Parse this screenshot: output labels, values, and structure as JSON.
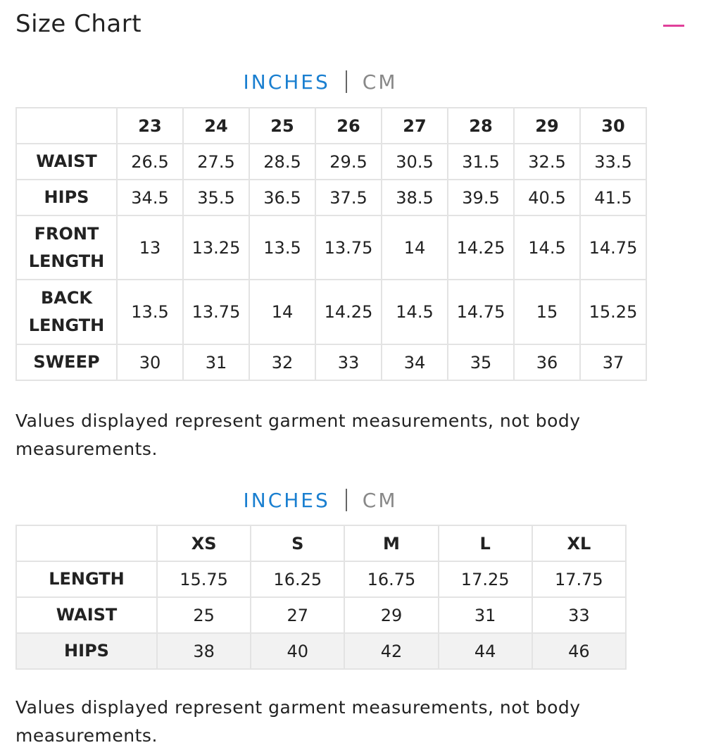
{
  "header": {
    "title": "Size Chart"
  },
  "tables": [
    {
      "units": [
        "INCHES",
        "CM"
      ],
      "columns": [
        "23",
        "24",
        "25",
        "26",
        "27",
        "28",
        "29",
        "30"
      ],
      "rows": [
        {
          "label": "WAIST",
          "values": [
            "26.5",
            "27.5",
            "28.5",
            "29.5",
            "30.5",
            "31.5",
            "32.5",
            "33.5"
          ]
        },
        {
          "label": "HIPS",
          "values": [
            "34.5",
            "35.5",
            "36.5",
            "37.5",
            "38.5",
            "39.5",
            "40.5",
            "41.5"
          ]
        },
        {
          "label": "FRONT LENGTH",
          "values": [
            "13",
            "13.25",
            "13.5",
            "13.75",
            "14",
            "14.25",
            "14.5",
            "14.75"
          ]
        },
        {
          "label": "BACK LENGTH",
          "values": [
            "13.5",
            "13.75",
            "14",
            "14.25",
            "14.5",
            "14.75",
            "15",
            "15.25"
          ]
        },
        {
          "label": "SWEEP",
          "values": [
            "30",
            "31",
            "32",
            "33",
            "34",
            "35",
            "36",
            "37"
          ]
        }
      ],
      "note": "Values displayed represent garment measurements, not body measurements."
    },
    {
      "units": [
        "INCHES",
        "CM"
      ],
      "columns": [
        "XS",
        "S",
        "M",
        "L",
        "XL"
      ],
      "rows": [
        {
          "label": "LENGTH",
          "values": [
            "15.75",
            "16.25",
            "16.75",
            "17.25",
            "17.75"
          ]
        },
        {
          "label": "WAIST",
          "values": [
            "25",
            "27",
            "29",
            "31",
            "33"
          ]
        },
        {
          "label": "HIPS",
          "values": [
            "38",
            "40",
            "42",
            "44",
            "46"
          ]
        }
      ],
      "note": "Values displayed represent garment measurements, not body measurements."
    }
  ]
}
